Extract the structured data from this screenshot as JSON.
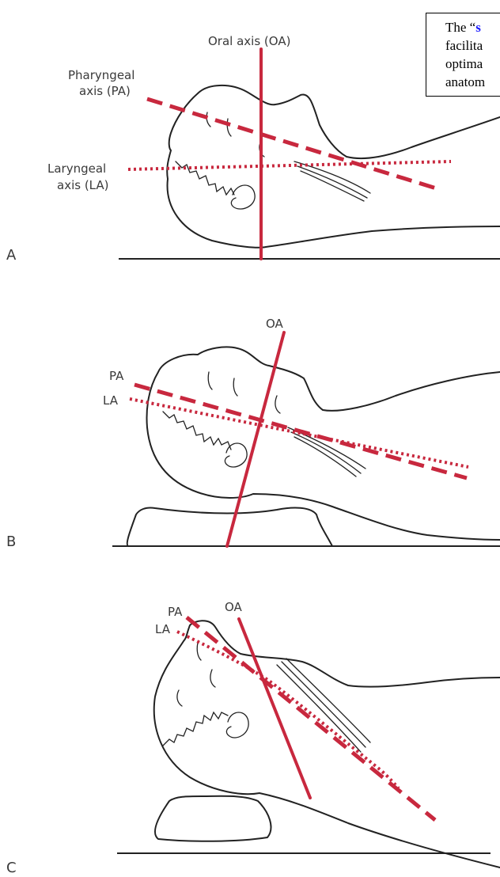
{
  "callout": {
    "line1_prefix": "The “",
    "line1_link": "s",
    "line2": "facilita",
    "line3": "optima",
    "line4": "anatom"
  },
  "panels": [
    {
      "letter": "A",
      "labels": {
        "oral": "Oral axis (OA)",
        "pharyngeal_1": "Pharyngeal",
        "pharyngeal_2": "axis (PA)",
        "laryngeal_1": "Laryngeal",
        "laryngeal_2": "axis (LA)"
      }
    },
    {
      "letter": "B",
      "labels": {
        "oral": "OA",
        "pharyngeal": "PA",
        "laryngeal": "LA"
      }
    },
    {
      "letter": "C",
      "labels": {
        "oral": "OA",
        "pharyngeal": "PA",
        "laryngeal": "LA"
      }
    }
  ],
  "colors": {
    "axis": "#c8283e",
    "outline": "#222222",
    "label": "#3a3a3a",
    "callout_link": "#1a1aff"
  }
}
